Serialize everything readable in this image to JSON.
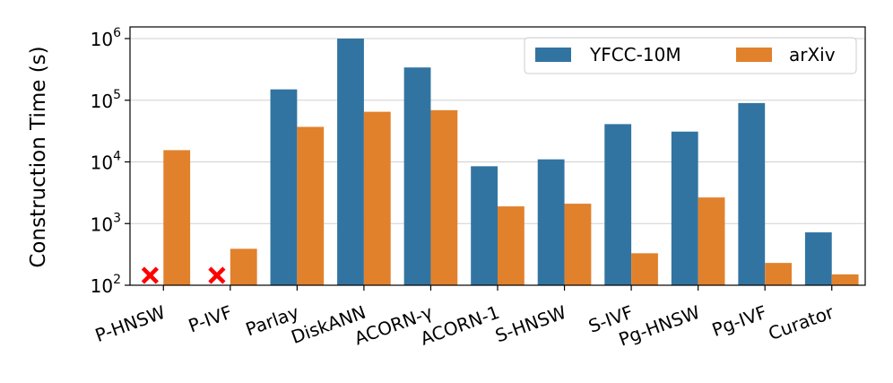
{
  "chart_data": {
    "type": "bar",
    "title": "",
    "xlabel": "",
    "ylabel": "Construction Time (s)",
    "yscale": "log",
    "ylim": [
      100,
      1000000
    ],
    "grid": "horizontal",
    "legend_position": "top-right",
    "categories": [
      "P-HNSW",
      "P-IVF",
      "Parlay",
      "DiskANN",
      "ACORN-γ",
      "ACORN-1",
      "S-HNSW",
      "S-IVF",
      "Pg-HNSW",
      "Pg-IVF",
      "Curator"
    ],
    "series": [
      {
        "name": "YFCC-10M",
        "color": "#3274a1",
        "values": [
          null,
          null,
          150000,
          1000000,
          340000,
          8500,
          11000,
          41000,
          31000,
          90000,
          720
        ]
      },
      {
        "name": "arXiv",
        "color": "#e1812c",
        "values": [
          15500,
          390,
          37000,
          65000,
          69000,
          1900,
          2100,
          330,
          2650,
          230,
          150
        ]
      }
    ],
    "missing_marker": "x-icon",
    "missing_marker_color": "#ff0000",
    "yticks": [
      {
        "base": "10",
        "exp": "2",
        "value": 100
      },
      {
        "base": "10",
        "exp": "3",
        "value": 1000
      },
      {
        "base": "10",
        "exp": "4",
        "value": 10000
      },
      {
        "base": "10",
        "exp": "5",
        "value": 100000
      },
      {
        "base": "10",
        "exp": "6",
        "value": 1000000
      }
    ]
  }
}
